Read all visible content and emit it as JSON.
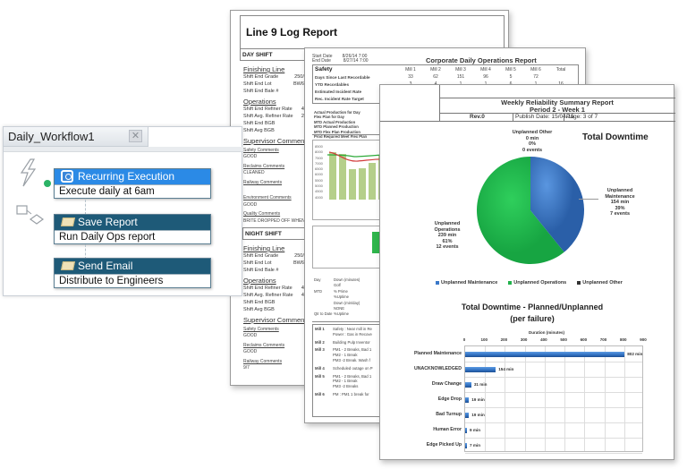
{
  "workflow": {
    "tab_title": "Daily_Workflow1",
    "close_icon": "close-icon",
    "side_icons": [
      "lightning-trigger-icon",
      "flow-shapes-icon"
    ],
    "nodes": [
      {
        "title": "Recurring Execution",
        "body": "Execute daily at 6am",
        "icon": "alarm-clock-icon",
        "color": "#2b8ae6"
      },
      {
        "title": "Save Report",
        "body": "Run Daily Ops report",
        "icon": "folder-icon",
        "color": "#1e5a78"
      },
      {
        "title": "Send Email",
        "body": "Distribute to Engineers",
        "icon": "folder-icon",
        "color": "#1e5a78"
      }
    ]
  },
  "log_report": {
    "title": "Line 9 Log Report",
    "date_labels": [
      "Start Date",
      "End Date"
    ],
    "date_values": [
      "8/26/14 7:00",
      "8/27/14 7:00"
    ],
    "day_shift": {
      "header": "DAY SHIFT",
      "finishing_line": "Finishing Line",
      "finishing_rows": [
        [
          "Shift End Grade",
          "250/80"
        ],
        [
          "Shift End Lot",
          "BW636"
        ],
        [
          "Shift End Bale #",
          "70"
        ]
      ],
      "operations": "Operations",
      "operation_rows": [
        [
          "Shift End Refiner Rate",
          "445"
        ],
        [
          "Shift Avg. Refiner Rate",
          "241"
        ],
        [
          "Shift End BGB",
          "53"
        ],
        [
          "Shift Avg BGB",
          "-5"
        ]
      ],
      "supervisor": "Supervisor Comments",
      "comments": [
        {
          "label": "Safety Comments",
          "value": "GOOD"
        },
        {
          "label": "Reclaims Comments",
          "value": "CLEANED"
        },
        {
          "label": "Railway Comments",
          "value": ""
        },
        {
          "label": "Environment Comments",
          "value": "GOOD"
        },
        {
          "label": "Quality Comments",
          "value": "BRITE DROPPED OFF WHEN T"
        }
      ]
    },
    "night_shift": {
      "header": "NIGHT SHIFT",
      "finishing_line": "Finishing Line",
      "finishing_rows": [
        [
          "Shift End Grade",
          "250/80"
        ],
        [
          "Shift End Lot",
          "BW641"
        ],
        [
          "Shift End Bale #",
          "71"
        ]
      ],
      "operations": "Operations",
      "operation_rows": [
        [
          "Shift End Refiner Rate",
          "445"
        ],
        [
          "Shift Avg. Refiner Rate",
          "445"
        ],
        [
          "Shift End BGB",
          "54"
        ],
        [
          "Shift Avg BGB",
          "29"
        ]
      ],
      "supervisor": "Supervisor Comments",
      "comments": [
        {
          "label": "Safety Comments",
          "value": "GOOD"
        },
        {
          "label": "Reclaims Comments",
          "value": "GOOD"
        },
        {
          "label": "Railway Comments",
          "value": "9/7"
        }
      ]
    }
  },
  "ops_report": {
    "title": "Corporate Daily Operations Report",
    "dates": [
      [
        "Start Date",
        "8/26/14 7:00"
      ],
      [
        "End Date",
        "8/27/14 7:00"
      ]
    ],
    "columns": [
      "Mill 1",
      "Mill 2",
      "Mill 3",
      "Mill 4",
      "Mill 5",
      "Mill 6",
      "Total"
    ],
    "safety_label": "Safety",
    "rows": [
      {
        "label": "Days Since Last Recordable",
        "values": [
          "33",
          "62",
          "151",
          "96",
          "5",
          "72",
          ""
        ]
      },
      {
        "label": "YTD Recordables",
        "values": [
          "3",
          "4",
          "1",
          "1",
          "6",
          "1",
          "16"
        ]
      },
      {
        "label": "Estimated Incident Rate",
        "values": []
      },
      {
        "label": "Rec. Incident Rate Target",
        "values": []
      }
    ],
    "production_rows": [
      "Actual Production for Day",
      "Flex Plan for Day",
      "MTD Actual Production",
      "MTD Planned Production",
      "MTD Flex Plan Production",
      "Prod Required Meet Flex Plan"
    ],
    "mini_chart": {
      "y_ticks": [
        "8500",
        "8000",
        "7500",
        "7000",
        "6500",
        "6000",
        "5500",
        "5000",
        "4500",
        "4000"
      ],
      "bars": [
        7950,
        7850,
        6550,
        6600,
        7100,
        7700
      ],
      "bar_color": "#b5cf8a"
    },
    "downtime_rows": [
      [
        "Day",
        "Down (minutes)"
      ],
      [
        "",
        "Golf"
      ],
      [
        "MTD",
        "% Prime"
      ],
      [
        "",
        "%Uptime"
      ],
      [
        "",
        "Down (min/day)"
      ],
      [
        "",
        "NONE"
      ],
      [
        "Qtr to Date",
        "%Uptime"
      ]
    ],
    "mill_notes": [
      {
        "mill": "Mill 1",
        "lines": [
          "Safety : Near mill in Re",
          "Power : Gas in Recove"
        ]
      },
      {
        "mill": "Mill 2",
        "lines": [
          "Building Pulp Inventor"
        ]
      },
      {
        "mill": "Mill 3",
        "lines": [
          "PM1 - 2 Breaks, Bad 1",
          "PM2 - 1 Break",
          "PM3 -2 Break.  Wash f"
        ]
      },
      {
        "mill": "Mill 4",
        "lines": [
          "Scheduled outage on P"
        ]
      },
      {
        "mill": "Mill 5",
        "lines": [
          "PM1 - 2 Breaks, Bad 1",
          "PM2 - 1 Break",
          "PM3 -2 Breaks"
        ]
      },
      {
        "mill": "Mill 6",
        "lines": [
          "PM : PM1 1 break for"
        ]
      }
    ]
  },
  "reliability_report": {
    "title": "Weekly Reliability Summary Report",
    "period": "Period 2 - Week 1",
    "rev": "Rev.0",
    "publish_date": "Publish Date: 15/04/15",
    "page": "Page: 3 of 7"
  },
  "chart_data": [
    {
      "type": "pie",
      "title": "Total Downtime",
      "categories": [
        "Unplanned Maintenance",
        "Unplanned Operations",
        "Unplanned Other"
      ],
      "values": [
        154,
        239,
        0
      ],
      "percent": [
        39,
        61,
        0
      ],
      "events": [
        7,
        12,
        0
      ],
      "colors": [
        "#3a78c9",
        "#22b24c",
        "#333333"
      ],
      "labels": [
        [
          "Unplanned",
          "Maintenance",
          "154 min",
          "39%",
          "7 events"
        ],
        [
          "Unplanned",
          "Operations",
          "239 min",
          "61%",
          "12 events"
        ],
        [
          "Unplanned Other",
          "0 min",
          "0%",
          "0 events"
        ]
      ],
      "legend": [
        "Unplanned Maintenance",
        "Unplanned Operations",
        "Unplanned Other"
      ],
      "legend_position": "bottom"
    },
    {
      "type": "bar",
      "orientation": "horizontal",
      "title": "Total Downtime - Planned/Unplanned",
      "subtitle": "(per failure)",
      "xlabel": "Duration (minutes)",
      "xlim": [
        0,
        900
      ],
      "x_ticks": [
        "0",
        "100",
        "200",
        "300",
        "400",
        "500",
        "600",
        "700",
        "800",
        "900"
      ],
      "categories": [
        "Planned Maintenance",
        "UNACKNOWLEDGED",
        "Draw Change",
        "Edge Drop",
        "Bad Turnup",
        "Human Error",
        "Edge Picked Up"
      ],
      "values": [
        802,
        154,
        31,
        19,
        19,
        9,
        7
      ],
      "value_labels": [
        "802 min",
        "154 min",
        "31 min",
        "19 min",
        "19 min",
        "9 min",
        "7 min"
      ],
      "grid": true,
      "bar_color": "#2f6fbf"
    }
  ]
}
